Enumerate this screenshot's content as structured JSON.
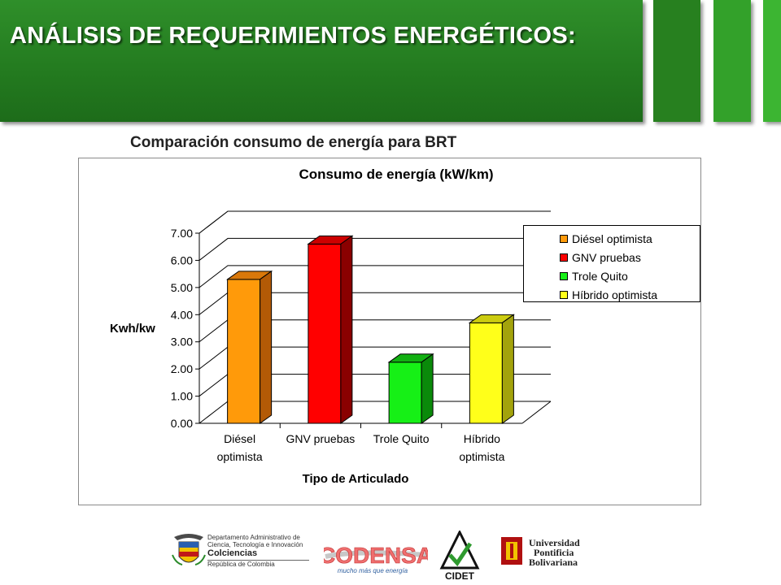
{
  "header": {
    "title": "ANÁLISIS DE REQUERIMIENTOS ENERGÉTICOS:"
  },
  "subtitle": "Comparación consumo de energía para BRT",
  "chart_data": {
    "type": "bar",
    "title": "Consumo de energía (kW/km)",
    "xlabel": "Tipo de Articulado",
    "ylabel": "Kwh/kw",
    "ylim": [
      0,
      7
    ],
    "yticks": [
      "0.00",
      "1.00",
      "2.00",
      "3.00",
      "4.00",
      "5.00",
      "6.00",
      "7.00"
    ],
    "grid": true,
    "three_d": true,
    "legend_position": "right",
    "categories": [
      [
        "Diésel",
        "optimista"
      ],
      [
        "GNV pruebas"
      ],
      [
        "Trole Quito"
      ],
      [
        "Híbrido",
        "optimista"
      ]
    ],
    "series": [
      {
        "name": "Diésel optimista",
        "value": 5.3,
        "color": "#ff9a0a",
        "top": "#d9780a",
        "side": "#b35a06"
      },
      {
        "name": "GNV pruebas",
        "value": 6.6,
        "color": "#ff0000",
        "top": "#cc0000",
        "side": "#8a0000"
      },
      {
        "name": "Trole Quito",
        "value": 2.25,
        "color": "#16f016",
        "top": "#12b012",
        "side": "#0a8a0a"
      },
      {
        "name": "Híbrido optimista",
        "value": 3.7,
        "color": "#ffff1a",
        "top": "#cccc10",
        "side": "#a3a30c"
      }
    ]
  },
  "footer": {
    "colciencias": {
      "line1": "Departamento Administrativo de",
      "line2": "Ciencia, Tecnología e Innovación",
      "name": "Colciencias",
      "country": "República de Colombia"
    },
    "codensa": {
      "name": "CODENSA",
      "slogan": "mucho más que energía"
    },
    "cidet": {
      "name": "CIDET"
    },
    "upb": {
      "line1": "Universidad",
      "line2": "Pontificia",
      "line3": "Bolivariana"
    }
  },
  "colors": {
    "header_green": "#237a1f",
    "stripe_green": "#33a12a"
  }
}
